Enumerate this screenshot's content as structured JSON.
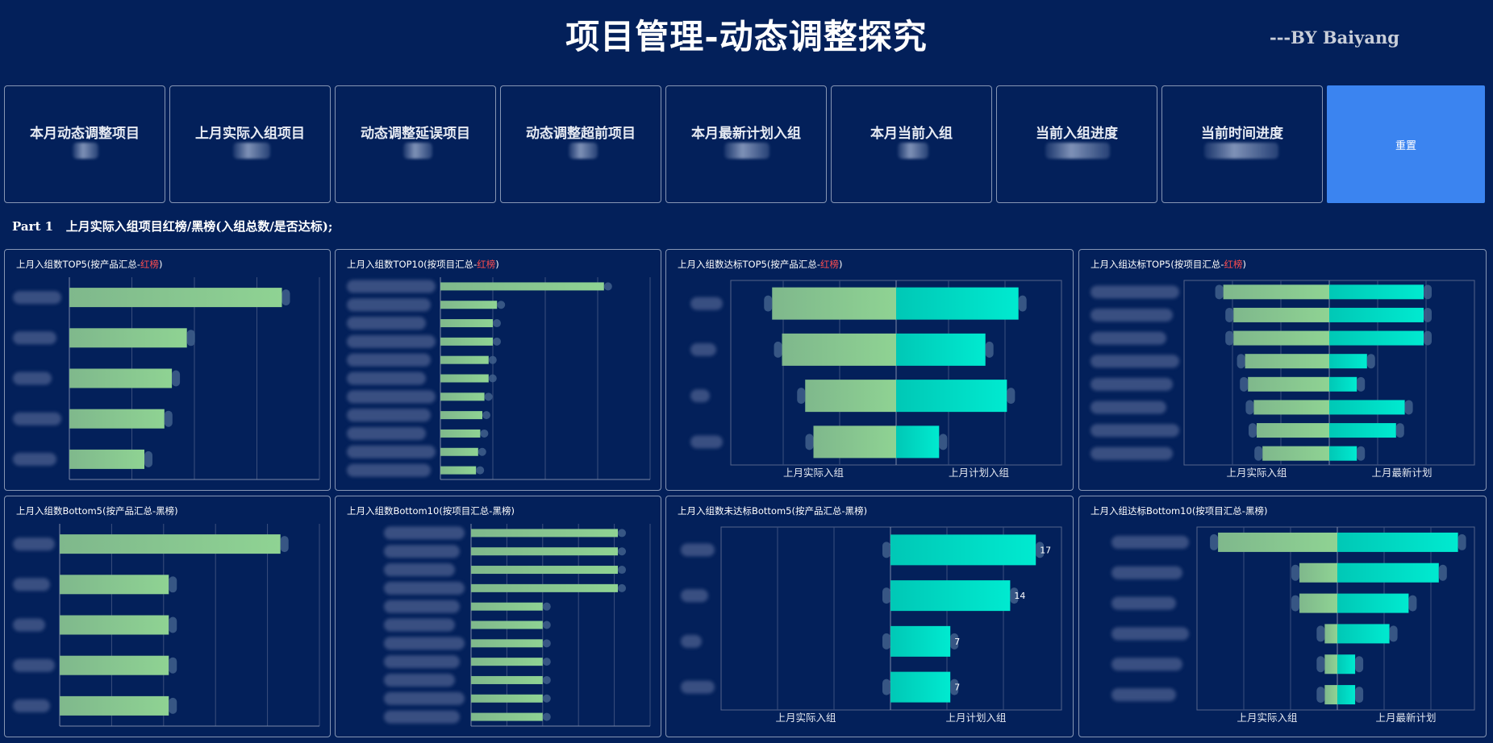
{
  "header": {
    "title": "项目管理-动态调整探究",
    "byline": "---BY Baiyang"
  },
  "kpis": [
    {
      "label": "本月动态调整项目"
    },
    {
      "label": "上月实际入组项目"
    },
    {
      "label": "动态调整延误项目"
    },
    {
      "label": "动态调整超前项目"
    },
    {
      "label": "本月最新计划入组"
    },
    {
      "label": "本月当前入组"
    },
    {
      "label": "当前入组进度"
    },
    {
      "label": "当前时间进度"
    }
  ],
  "reset_label": "重置",
  "section_title": "Part 1   上月实际入组项目红榜/黑榜(入组总数/是否达标);",
  "colors": {
    "background": "#03205a",
    "bar_green": "#8acb8f",
    "bar_cyan": "#00e0c0",
    "reset_blue": "#3b84f0",
    "red_tag": "#ff4d4f"
  },
  "panels": [
    {
      "title_pre": "上月入组数TOP5(按产品汇总-",
      "title_tag": "红榜",
      "title_post": ")"
    },
    {
      "title_pre": "上月入组数TOP10(按项目汇总-",
      "title_tag": "红榜",
      "title_post": ")"
    },
    {
      "title_pre": "上月入组数达标TOP5(按产品汇总-",
      "title_tag": "红榜",
      "title_post": ")"
    },
    {
      "title_pre": "上月入组达标TOP5(按项目汇总-",
      "title_tag": "红榜",
      "title_post": ")"
    },
    {
      "title_pre": "上月入组数Bottom5(按产品汇总-黑榜)",
      "title_tag": "",
      "title_post": ""
    },
    {
      "title_pre": "上月入组数Bottom10(按项目汇总-黑榜)",
      "title_tag": "",
      "title_post": ""
    },
    {
      "title_pre": "上月入组数未达标Bottom5(按产品汇总-黑榜)",
      "title_tag": "",
      "title_post": ""
    },
    {
      "title_pre": "上月入组达标Bottom10(按项目汇总-黑榜)",
      "title_tag": "",
      "title_post": ""
    }
  ],
  "chart_data": [
    {
      "type": "bar",
      "orientation": "horizontal",
      "title": "上月入组数TOP5(按产品汇总-红榜)",
      "categories_blurred": true,
      "values": [
        0.85,
        0.47,
        0.41,
        0.38,
        0.3
      ],
      "grid": true
    },
    {
      "type": "bar",
      "orientation": "horizontal",
      "title": "上月入组数TOP10(按项目汇总-红榜)",
      "categories_blurred": true,
      "values": [
        0.78,
        0.27,
        0.25,
        0.25,
        0.23,
        0.23,
        0.21,
        0.2,
        0.19,
        0.18,
        0.17
      ],
      "grid": true
    },
    {
      "type": "bar",
      "orientation": "horizontal",
      "layout": "butterfly",
      "title": "上月入组数达标TOP5(按产品汇总-红榜)",
      "categories_blurred": true,
      "left_label": "上月实际入组",
      "right_label": "上月计划入组",
      "left_values": [
        0.75,
        0.69,
        0.55,
        0.5
      ],
      "right_values": [
        0.74,
        0.54,
        0.67,
        0.26
      ],
      "grid": true
    },
    {
      "type": "bar",
      "orientation": "horizontal",
      "layout": "butterfly",
      "title": "上月入组达标TOP5(按项目汇总-红榜)",
      "categories_blurred": true,
      "left_label": "上月实际入组",
      "right_label": "上月最新计划",
      "left_values": [
        0.73,
        0.66,
        0.66,
        0.58,
        0.56,
        0.52,
        0.5,
        0.46
      ],
      "right_values": [
        0.65,
        0.65,
        0.65,
        0.26,
        0.19,
        0.52,
        0.46,
        0.19
      ],
      "grid": true
    },
    {
      "type": "bar",
      "orientation": "horizontal",
      "title": "上月入组数Bottom5(按产品汇总-黑榜)",
      "categories_blurred": true,
      "values": [
        0.85,
        0.42,
        0.42,
        0.42,
        0.42
      ],
      "grid": true
    },
    {
      "type": "bar",
      "orientation": "horizontal",
      "title": "上月入组数Bottom10(按项目汇总-黑榜)",
      "categories_blurred": true,
      "values": [
        0.82,
        0.82,
        0.82,
        0.82,
        0.4,
        0.4,
        0.4,
        0.4,
        0.4,
        0.4,
        0.4
      ],
      "grid": true
    },
    {
      "type": "bar",
      "orientation": "horizontal",
      "layout": "butterfly",
      "title": "上月入组数未达标Bottom5(按产品汇总-黑榜)",
      "categories_blurred": true,
      "left_label": "上月实际入组",
      "right_label": "上月计划入组",
      "left_values": [
        0,
        0,
        0,
        0
      ],
      "right_values": [
        17,
        14,
        7,
        7
      ],
      "right_max": 20,
      "data_labels": [
        "17",
        "14",
        "7",
        "7"
      ],
      "grid": true
    },
    {
      "type": "bar",
      "orientation": "horizontal",
      "layout": "butterfly",
      "title": "上月入组达标Bottom10(按项目汇总-黑榜)",
      "categories_blurred": true,
      "left_label": "上月实际入组",
      "right_label": "上月最新计划",
      "left_values": [
        0.85,
        0.27,
        0.27,
        0.09,
        0.09,
        0.09
      ],
      "right_values": [
        0.88,
        0.74,
        0.52,
        0.38,
        0.13,
        0.13
      ],
      "grid": true
    }
  ]
}
